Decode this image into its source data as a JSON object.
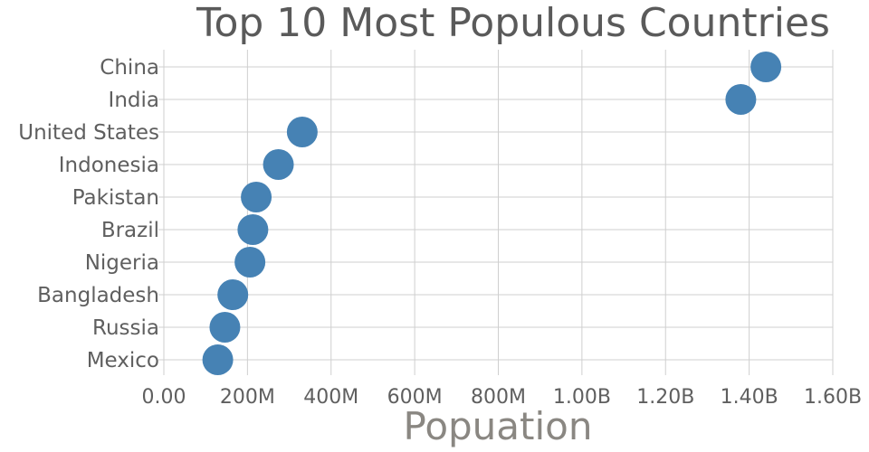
{
  "chart_data": {
    "type": "scatter",
    "title": "Top 10 Most Populous Countries",
    "xlabel": "Popuation",
    "ylabel": "",
    "xlim": [
      0,
      1600000000
    ],
    "x_ticks": [
      {
        "value": 0,
        "label": "0.00"
      },
      {
        "value": 200000000,
        "label": "200M"
      },
      {
        "value": 400000000,
        "label": "400M"
      },
      {
        "value": 600000000,
        "label": "600M"
      },
      {
        "value": 800000000,
        "label": "800M"
      },
      {
        "value": 1000000000,
        "label": "1.00B"
      },
      {
        "value": 1200000000,
        "label": "1.20B"
      },
      {
        "value": 1400000000,
        "label": "1.40B"
      },
      {
        "value": 1600000000,
        "label": "1.60B"
      }
    ],
    "categories": [
      "China",
      "India",
      "United States",
      "Indonesia",
      "Pakistan",
      "Brazil",
      "Nigeria",
      "Bangladesh",
      "Russia",
      "Mexico"
    ],
    "values": [
      1440000000,
      1380000000,
      331000000,
      274000000,
      221000000,
      213000000,
      206000000,
      165000000,
      146000000,
      129000000
    ],
    "grid": true,
    "point_color": "#4682b4"
  }
}
